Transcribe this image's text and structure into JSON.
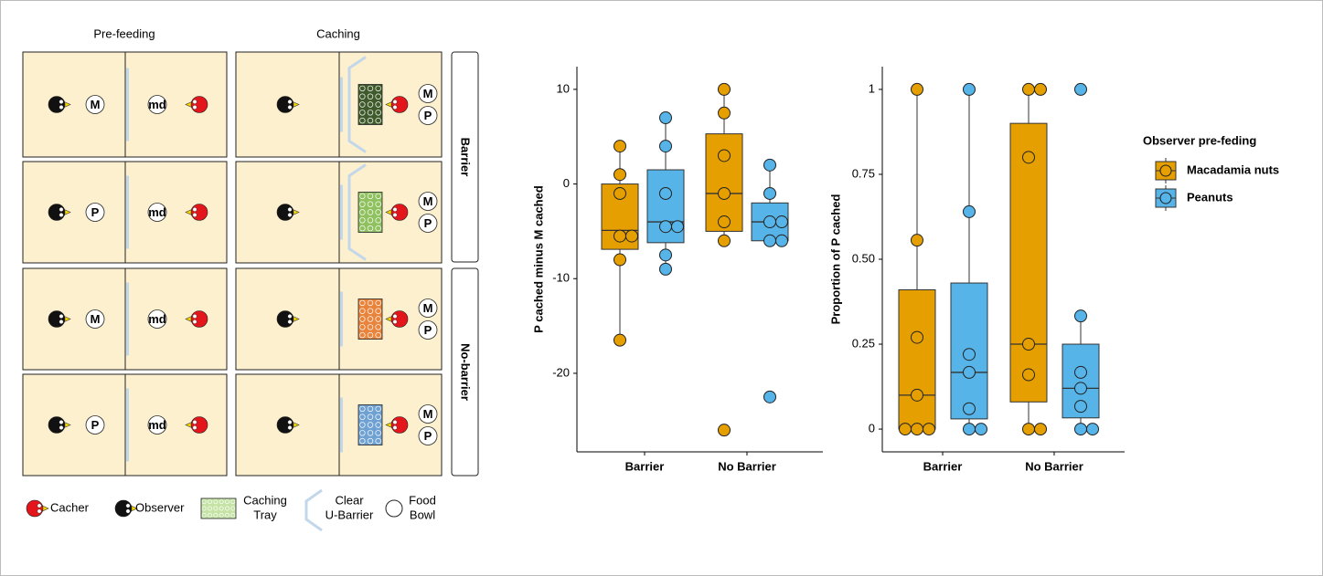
{
  "diagram": {
    "columns": [
      "Pre-feeding",
      "Caching"
    ],
    "groups": [
      "Barrier",
      "No-barrier"
    ],
    "rows": [
      {
        "prefeed_bowl": "M",
        "empty_bowl": "md",
        "cache_bowls": [
          "M",
          "P"
        ]
      },
      {
        "prefeed_bowl": "P",
        "empty_bowl": "md",
        "cache_bowls": [
          "M",
          "P"
        ]
      },
      {
        "prefeed_bowl": "M",
        "empty_bowl": "md",
        "cache_bowls": [
          "M",
          "P"
        ]
      },
      {
        "prefeed_bowl": "P",
        "empty_bowl": "md",
        "cache_bowls": [
          "M",
          "P"
        ]
      }
    ],
    "legend": [
      [
        "Cacher"
      ],
      [
        "Observer"
      ],
      [
        "Caching",
        "Tray"
      ],
      [
        "Clear",
        "U-Barrier"
      ],
      [
        "Food",
        "Bowl"
      ]
    ]
  },
  "chart_data": [
    {
      "type": "box",
      "ylabel": "P cached minus M cached",
      "categories": [
        "Barrier",
        "No Barrier"
      ],
      "ylim": [
        -28.3,
        12.4
      ],
      "yticks": [
        -20,
        -10,
        0,
        10
      ],
      "series": [
        {
          "color": "#e69f00",
          "boxes": [
            {
              "whisker_low": -16.5,
              "q1": -6.9,
              "median": -4.9,
              "q3": 0,
              "whisker_high": 4,
              "points": [
                4,
                1,
                -1,
                -5.5,
                -5.5,
                -8,
                -16.5
              ]
            },
            {
              "whisker_low": -6,
              "q1": -5,
              "median": -1,
              "q3": 5.3,
              "whisker_high": 10,
              "points": [
                10,
                7.5,
                3,
                -1,
                -4,
                -6,
                -26
              ]
            }
          ]
        },
        {
          "color": "#56b4e9",
          "boxes": [
            {
              "whisker_low": -9,
              "q1": -6.2,
              "median": -4,
              "q3": 1.5,
              "whisker_high": 7,
              "points": [
                7,
                4,
                -1,
                -4.5,
                -4.5,
                -7.5,
                -9
              ]
            },
            {
              "whisker_low": -6,
              "q1": -6,
              "median": -4,
              "q3": -2,
              "whisker_high": 2,
              "points": [
                2,
                -1,
                -4,
                -4,
                -6,
                -6,
                -22.5
              ]
            }
          ]
        }
      ]
    },
    {
      "type": "box",
      "ylabel": "Proportion of P cached",
      "categories": [
        "Barrier",
        "No Barrier"
      ],
      "ylim": [
        -0.067,
        1.067
      ],
      "yticks": [
        0,
        0.25,
        {
          "value": 0.5,
          "label": "0.50"
        },
        0.75,
        1
      ],
      "legend_title": "Observer pre-feding",
      "series": [
        {
          "name": "Macadamia nuts",
          "color": "#e69f00",
          "boxes": [
            {
              "whisker_low": 0,
              "q1": 0,
              "median": 0.1,
              "q3": 0.41,
              "whisker_high": 1,
              "points": [
                1,
                0.556,
                0.27,
                0.1,
                0,
                0,
                0
              ]
            },
            {
              "whisker_low": 0,
              "q1": 0.08,
              "median": 0.25,
              "q3": 0.9,
              "whisker_high": 1,
              "points": [
                1,
                1,
                0.8,
                0.25,
                0.16,
                0,
                0
              ]
            }
          ]
        },
        {
          "name": "Peanuts",
          "color": "#56b4e9",
          "boxes": [
            {
              "whisker_low": 0,
              "q1": 0.03,
              "median": 0.167,
              "q3": 0.43,
              "whisker_high": 1,
              "points": [
                1,
                0.64,
                0.22,
                0.167,
                0.06,
                0,
                0
              ]
            },
            {
              "whisker_low": 0,
              "q1": 0.033,
              "median": 0.12,
              "q3": 0.25,
              "whisker_high": 0.333,
              "points": [
                1,
                0.333,
                0.167,
                0.12,
                0.067,
                0,
                0
              ]
            }
          ]
        }
      ]
    }
  ]
}
